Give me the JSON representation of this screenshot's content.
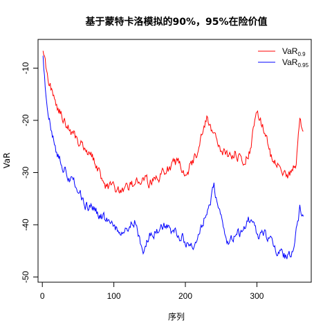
{
  "chart_data": {
    "type": "line",
    "title": "基于蒙特卡洛模拟的90%，95%在险价值",
    "xlabel": "序列",
    "ylabel": "VaR",
    "xlim": [
      0,
      370
    ],
    "ylim": [
      -50,
      -5
    ],
    "x_ticks": [
      0,
      100,
      200,
      300
    ],
    "y_ticks": [
      -10,
      -20,
      -30,
      -40,
      -50
    ],
    "grid": false,
    "legend_position": "top-right",
    "n_points": 365,
    "series": [
      {
        "name": "VaR",
        "name_subscript": "0.9",
        "color": "#ff0000",
        "points": [
          [
            1,
            -6
          ],
          [
            5,
            -10
          ],
          [
            10,
            -13
          ],
          [
            15,
            -15
          ],
          [
            20,
            -17
          ],
          [
            25,
            -18.5
          ],
          [
            30,
            -20
          ],
          [
            40,
            -22
          ],
          [
            50,
            -24
          ],
          [
            60,
            -25
          ],
          [
            70,
            -27
          ],
          [
            80,
            -30
          ],
          [
            90,
            -33
          ],
          [
            100,
            -33
          ],
          [
            110,
            -34
          ],
          [
            120,
            -33
          ],
          [
            130,
            -32
          ],
          [
            140,
            -31
          ],
          [
            150,
            -32
          ],
          [
            160,
            -31
          ],
          [
            170,
            -30
          ],
          [
            180,
            -29
          ],
          [
            190,
            -28
          ],
          [
            200,
            -30
          ],
          [
            210,
            -28
          ],
          [
            220,
            -25
          ],
          [
            230,
            -19
          ],
          [
            240,
            -23
          ],
          [
            250,
            -26
          ],
          [
            260,
            -27
          ],
          [
            270,
            -26
          ],
          [
            280,
            -28
          ],
          [
            290,
            -26
          ],
          [
            300,
            -18
          ],
          [
            310,
            -22
          ],
          [
            320,
            -27
          ],
          [
            330,
            -28
          ],
          [
            340,
            -31
          ],
          [
            350,
            -30
          ],
          [
            355,
            -28
          ],
          [
            360,
            -20
          ],
          [
            365,
            -22
          ]
        ]
      },
      {
        "name": "VaR",
        "name_subscript": "0.95",
        "color": "#0000ff",
        "points": [
          [
            1,
            -7
          ],
          [
            5,
            -15
          ],
          [
            10,
            -20
          ],
          [
            15,
            -23
          ],
          [
            20,
            -26
          ],
          [
            30,
            -29
          ],
          [
            40,
            -31
          ],
          [
            50,
            -33
          ],
          [
            60,
            -36
          ],
          [
            70,
            -37
          ],
          [
            80,
            -38
          ],
          [
            90,
            -39
          ],
          [
            100,
            -40
          ],
          [
            110,
            -42
          ],
          [
            120,
            -41
          ],
          [
            130,
            -39
          ],
          [
            140,
            -46
          ],
          [
            150,
            -42
          ],
          [
            160,
            -41
          ],
          [
            170,
            -40
          ],
          [
            180,
            -41
          ],
          [
            190,
            -42
          ],
          [
            200,
            -43
          ],
          [
            210,
            -44
          ],
          [
            220,
            -42
          ],
          [
            230,
            -37
          ],
          [
            240,
            -33
          ],
          [
            250,
            -38
          ],
          [
            260,
            -44
          ],
          [
            270,
            -42
          ],
          [
            280,
            -41
          ],
          [
            290,
            -39
          ],
          [
            300,
            -42
          ],
          [
            310,
            -42
          ],
          [
            320,
            -43
          ],
          [
            330,
            -45
          ],
          [
            340,
            -46
          ],
          [
            350,
            -45
          ],
          [
            355,
            -40
          ],
          [
            360,
            -37
          ],
          [
            365,
            -38
          ]
        ]
      }
    ]
  }
}
